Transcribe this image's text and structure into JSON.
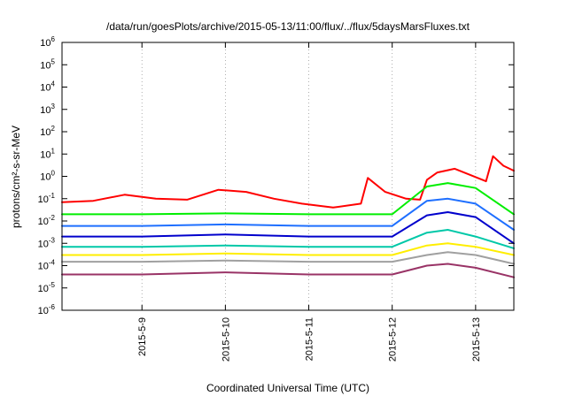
{
  "chart_data": {
    "type": "line",
    "title": "/data/run/goesPlots/archive/2015-05-13/11:00/flux/../flux/5daysMarsFluxes.txt",
    "xlabel": "Coordinated Universal Time (UTC)",
    "ylabel": "protons/cm²-s-sr-MeV",
    "yscale": "log",
    "ylim": [
      1e-06,
      1000000.0
    ],
    "xlim": [
      "2015-05-08 01:00",
      "2015-05-13 11:00"
    ],
    "yticks": [
      {
        "base": "10",
        "exp": "-6"
      },
      {
        "base": "10",
        "exp": "-5"
      },
      {
        "base": "10",
        "exp": "-4"
      },
      {
        "base": "10",
        "exp": "-3"
      },
      {
        "base": "10",
        "exp": "-2"
      },
      {
        "base": "10",
        "exp": "-1"
      },
      {
        "base": "10",
        "exp": "0"
      },
      {
        "base": "10",
        "exp": "1"
      },
      {
        "base": "10",
        "exp": "2"
      },
      {
        "base": "10",
        "exp": "3"
      },
      {
        "base": "10",
        "exp": "4"
      },
      {
        "base": "10",
        "exp": "5"
      },
      {
        "base": "10",
        "exp": "6"
      }
    ],
    "xticks": [
      "2015-5-9",
      "2015-5-10",
      "2015-5-11",
      "2015-5-12",
      "2015-5-13"
    ],
    "grid": true,
    "legend": "none",
    "series": [
      {
        "color": "#ff0000",
        "x": [
          "2015-05-08 01:00",
          "2015-05-08 10:00",
          "2015-05-08 19:00",
          "2015-05-09 04:00",
          "2015-05-09 13:00",
          "2015-05-09 22:00",
          "2015-05-10 06:00",
          "2015-05-10 14:00",
          "2015-05-10 22:00",
          "2015-05-11 07:00",
          "2015-05-11 15:00",
          "2015-05-11 17:00",
          "2015-05-11 22:00",
          "2015-05-12 04:00",
          "2015-05-12 08:00",
          "2015-05-12 10:00",
          "2015-05-12 13:00",
          "2015-05-12 18:00",
          "2015-05-13 03:00",
          "2015-05-13 05:00",
          "2015-05-13 08:00",
          "2015-05-13 11:00"
        ],
        "y": [
          0.07,
          0.08,
          0.15,
          0.1,
          0.09,
          0.25,
          0.2,
          0.1,
          0.06,
          0.04,
          0.06,
          0.85,
          0.2,
          0.1,
          0.09,
          0.7,
          1.5,
          2.2,
          0.6,
          8,
          3,
          1.8
        ]
      },
      {
        "color": "#00ee00",
        "x": [
          "2015-05-08 01:00",
          "2015-05-09 00:00",
          "2015-05-10 00:00",
          "2015-05-11 00:00",
          "2015-05-12 00:00",
          "2015-05-12 10:00",
          "2015-05-12 16:00",
          "2015-05-13 00:00",
          "2015-05-13 11:00"
        ],
        "y": [
          0.02,
          0.02,
          0.022,
          0.02,
          0.02,
          0.35,
          0.5,
          0.3,
          0.02
        ]
      },
      {
        "color": "#1e6fff",
        "x": [
          "2015-05-08 01:00",
          "2015-05-09 00:00",
          "2015-05-10 00:00",
          "2015-05-11 00:00",
          "2015-05-12 00:00",
          "2015-05-12 10:00",
          "2015-05-12 16:00",
          "2015-05-13 00:00",
          "2015-05-13 11:00"
        ],
        "y": [
          0.006,
          0.006,
          0.007,
          0.006,
          0.006,
          0.08,
          0.1,
          0.06,
          0.004
        ]
      },
      {
        "color": "#0000cc",
        "x": [
          "2015-05-08 01:00",
          "2015-05-09 00:00",
          "2015-05-10 00:00",
          "2015-05-11 00:00",
          "2015-05-12 00:00",
          "2015-05-12 10:00",
          "2015-05-12 16:00",
          "2015-05-13 00:00",
          "2015-05-13 11:00"
        ],
        "y": [
          0.002,
          0.002,
          0.0025,
          0.002,
          0.002,
          0.018,
          0.025,
          0.015,
          0.001
        ]
      },
      {
        "color": "#00c8a8",
        "x": [
          "2015-05-08 01:00",
          "2015-05-09 00:00",
          "2015-05-10 00:00",
          "2015-05-11 00:00",
          "2015-05-12 00:00",
          "2015-05-12 10:00",
          "2015-05-12 16:00",
          "2015-05-13 00:00",
          "2015-05-13 11:00"
        ],
        "y": [
          0.0007,
          0.0007,
          0.0008,
          0.0007,
          0.0007,
          0.003,
          0.004,
          0.002,
          0.0006
        ]
      },
      {
        "color": "#ffee00",
        "x": [
          "2015-05-08 01:00",
          "2015-05-09 00:00",
          "2015-05-10 00:00",
          "2015-05-11 00:00",
          "2015-05-12 00:00",
          "2015-05-12 10:00",
          "2015-05-12 16:00",
          "2015-05-13 00:00",
          "2015-05-13 11:00"
        ],
        "y": [
          0.0003,
          0.0003,
          0.00035,
          0.0003,
          0.0003,
          0.0008,
          0.001,
          0.0007,
          0.0003
        ]
      },
      {
        "color": "#a0a0a0",
        "x": [
          "2015-05-08 01:00",
          "2015-05-09 00:00",
          "2015-05-10 00:00",
          "2015-05-11 00:00",
          "2015-05-12 00:00",
          "2015-05-12 10:00",
          "2015-05-12 16:00",
          "2015-05-13 00:00",
          "2015-05-13 11:00"
        ],
        "y": [
          0.00015,
          0.00015,
          0.00017,
          0.00015,
          0.00015,
          0.0003,
          0.0004,
          0.0003,
          0.00012
        ]
      },
      {
        "color": "#993366",
        "x": [
          "2015-05-08 01:00",
          "2015-05-09 00:00",
          "2015-05-10 00:00",
          "2015-05-11 00:00",
          "2015-05-12 00:00",
          "2015-05-12 10:00",
          "2015-05-12 16:00",
          "2015-05-13 00:00",
          "2015-05-13 11:00"
        ],
        "y": [
          4e-05,
          4e-05,
          5e-05,
          4e-05,
          4e-05,
          0.0001,
          0.00012,
          8e-05,
          3e-05
        ]
      }
    ]
  }
}
